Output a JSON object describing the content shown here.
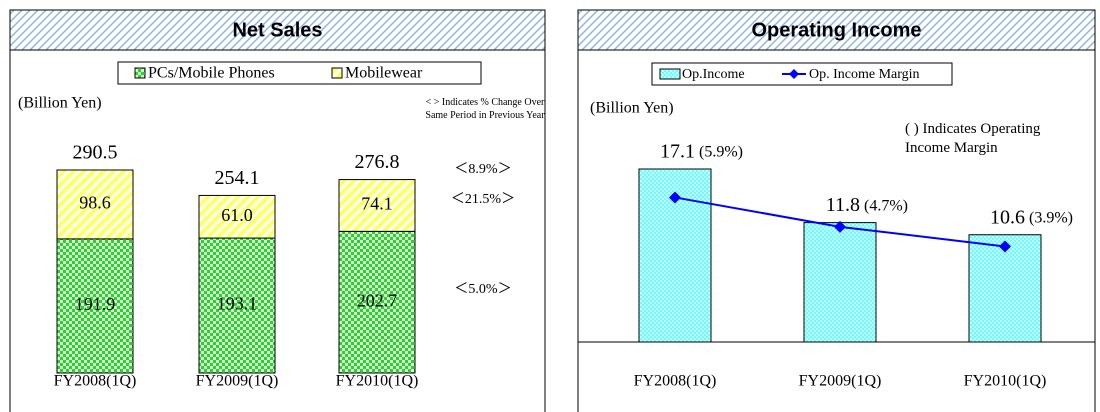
{
  "chart_data": [
    {
      "type": "stacked_bar",
      "title": "Net Sales",
      "unit": "(Billion Yen)",
      "note": "< > Indicates % Change Over Same Period in Previous Year",
      "categories": [
        "FY2008(1Q)",
        "FY2009(1Q)",
        "FY2010(1Q)"
      ],
      "series": [
        {
          "name": "PCs/Mobile Phones",
          "color": "#33cc33",
          "values": [
            191.9,
            193.1,
            202.7
          ]
        },
        {
          "name": "Mobilewear",
          "color": "#ffff66",
          "values": [
            98.6,
            61.0,
            74.1
          ],
          "value_labels": [
            "98.6",
            "61.0",
            "74.1"
          ]
        }
      ],
      "totals": [
        290.5,
        254.1,
        276.8
      ],
      "changes": [
        "＜8.9%＞",
        "＜21.5%＞",
        "＜5.0%＞"
      ]
    },
    {
      "type": "bar_line",
      "title": "Operating Income",
      "unit": "(Billion Yen)",
      "note": "( ) Indicates Operating Income Margin",
      "categories": [
        "FY2008(1Q)",
        "FY2009(1Q)",
        "FY2010(1Q)"
      ],
      "series": [
        {
          "name": "Op.Income",
          "color": "#66ffff",
          "values": [
            17.1,
            11.8,
            10.6
          ]
        },
        {
          "name": "Op. Income Margin",
          "color": "#0000ff",
          "axis": "y2",
          "values": [
            5.9,
            4.7,
            3.9
          ],
          "value_labels": [
            "(5.9%)",
            "(4.7%)",
            "(3.9%)"
          ]
        }
      ]
    }
  ]
}
